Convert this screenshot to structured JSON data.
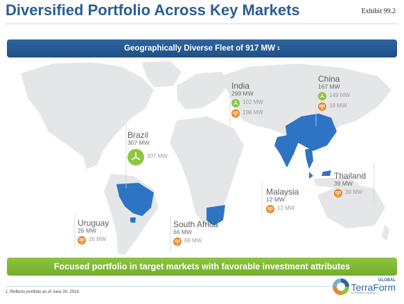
{
  "header": {
    "title": "Diversified Portfolio Across Key Markets",
    "exhibit": "Exhibit 99.2"
  },
  "banner_top": {
    "text": "Geographically Diverse Fleet of 917 MW",
    "superscript": "1"
  },
  "banner_bottom": {
    "text": "Focused portfolio in target markets with favorable investment attributes"
  },
  "colors": {
    "title_blue": "#2a5d95",
    "highlight_country": "#2d74c4",
    "solar_orange": "#e98427",
    "wind_green": "#8cc63f"
  },
  "markets": {
    "india": {
      "name": "India",
      "total": "299 MW",
      "wind": "102 MW",
      "solar": "198 MW"
    },
    "china": {
      "name": "China",
      "total": "167 MW",
      "wind": "149 MW",
      "solar": "18 MW"
    },
    "brazil": {
      "name": "Brazil",
      "total": "307 MW",
      "wind": "307 MW"
    },
    "thailand": {
      "name": "Thailand",
      "total": "39 MW",
      "solar": "39 MW"
    },
    "malaysia": {
      "name": "Malaysia",
      "total": "12 MW",
      "solar": "12 MW"
    },
    "uruguay": {
      "name": "Uruguay",
      "total": "26 MW",
      "solar": "26 MW"
    },
    "south_africa": {
      "name": "South Africa",
      "total": "66 MW",
      "solar": "66 MW"
    }
  },
  "icons": {
    "solar": "solar-panel-icon",
    "wind": "wind-turbine-icon"
  },
  "footer": {
    "footnote": "1. Reflects portfolio as of June 30, 2016.",
    "logo_text": "TerraForm",
    "logo_tag": "GLOBAL",
    "logo_sub": "a SunEdison company"
  }
}
